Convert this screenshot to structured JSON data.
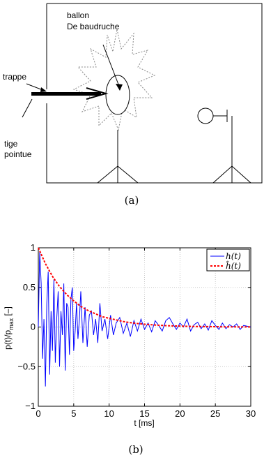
{
  "diagram": {
    "labels": {
      "balloon": [
        "ballon",
        "De baudruche"
      ],
      "trap": "trappe",
      "rod": [
        "tige",
        "pointue"
      ]
    },
    "caption": "(a)"
  },
  "chart": {
    "caption": "(b)",
    "xlabel": "t [ms]",
    "ylabel_main": "p(t)/p",
    "ylabel_sub": "max",
    "ylabel_tail": " [–]",
    "legend": [
      {
        "label": "h(t)",
        "color": "#0000ff",
        "style": "solid"
      },
      {
        "label": "ĥ(t)",
        "color": "#ff0000",
        "style": "dashed"
      }
    ]
  },
  "chart_data": {
    "type": "line",
    "title": "",
    "xlabel": "t [ms]",
    "ylabel": "p(t)/p_max [–]",
    "xlim": [
      0,
      30
    ],
    "ylim": [
      -1,
      1
    ],
    "grid": true,
    "legend_position": "top-right",
    "x_ticks": [
      0,
      5,
      10,
      15,
      20,
      25,
      30
    ],
    "y_ticks": [
      -1,
      -0.5,
      0,
      0.5,
      1
    ],
    "y_tick_labels": [
      "−1",
      "−0.5",
      "0",
      "0.5",
      "1"
    ],
    "series": [
      {
        "name": "h(t)",
        "color": "#0000ff",
        "x": [
          0,
          0.2,
          0.4,
          0.6,
          0.8,
          1.0,
          1.2,
          1.4,
          1.6,
          1.8,
          2.0,
          2.2,
          2.4,
          2.6,
          2.8,
          3.0,
          3.2,
          3.4,
          3.6,
          3.8,
          4.0,
          4.2,
          4.4,
          4.6,
          4.8,
          5.0,
          5.2,
          5.4,
          5.6,
          5.8,
          6.0,
          6.3,
          6.6,
          6.9,
          7.2,
          7.5,
          7.8,
          8.1,
          8.4,
          8.7,
          9.0,
          9.4,
          9.8,
          10.2,
          10.6,
          11.0,
          11.5,
          12.0,
          12.5,
          13.0,
          13.5,
          14.0,
          14.5,
          15.0,
          15.5,
          16.0,
          16.5,
          17.0,
          17.5,
          18.0,
          18.5,
          19.0,
          19.5,
          20.0,
          20.5,
          21.0,
          21.5,
          22.0,
          22.5,
          23.0,
          23.5,
          24.0,
          24.5,
          25.0,
          25.5,
          26.0,
          26.5,
          27.0,
          27.5,
          28.0,
          28.5,
          29.0,
          29.5,
          30.0
        ],
        "y": [
          0,
          0.95,
          0.55,
          -0.4,
          0.1,
          -0.75,
          0.3,
          0.7,
          -0.6,
          0.2,
          -0.3,
          0.6,
          -0.45,
          0.1,
          0.45,
          -0.5,
          0.2,
          -0.1,
          0.55,
          -0.55,
          0.3,
          0.25,
          -0.35,
          0.35,
          0.5,
          -0.3,
          -0.05,
          0.3,
          -0.15,
          0.1,
          0.45,
          -0.2,
          0.25,
          -0.25,
          0.15,
          0.2,
          -0.1,
          0.1,
          -0.2,
          0.3,
          -0.05,
          0.1,
          -0.15,
          0.15,
          -0.1,
          0.05,
          0.12,
          -0.08,
          0.05,
          -0.12,
          0.08,
          -0.05,
          0.1,
          -0.03,
          0.05,
          -0.06,
          0.08,
          0.02,
          -0.05,
          0.08,
          0.12,
          0.04,
          -0.03,
          0.05,
          0.0,
          0.1,
          -0.05,
          0.03,
          0.06,
          -0.02,
          0.04,
          -0.04,
          0.08,
          0.02,
          -0.03,
          0.05,
          -0.02,
          0.03,
          0.0,
          0.04,
          -0.03,
          0.02,
          0.01,
          0.0
        ]
      },
      {
        "name": "ĥ(t)",
        "color": "#ff0000",
        "dashed": true,
        "x": [
          0,
          1,
          2,
          3,
          4,
          5,
          6,
          7,
          8,
          9,
          10,
          11,
          12,
          13,
          14,
          15,
          16,
          17,
          18,
          19,
          20,
          21,
          22,
          23,
          24,
          25,
          26,
          27,
          28,
          29,
          30
        ],
        "y": [
          1.0,
          0.8,
          0.64,
          0.51,
          0.41,
          0.33,
          0.26,
          0.21,
          0.17,
          0.13,
          0.11,
          0.09,
          0.07,
          0.055,
          0.044,
          0.035,
          0.028,
          0.022,
          0.018,
          0.014,
          0.012,
          0.009,
          0.007,
          0.006,
          0.005,
          0.004,
          0.003,
          0.002,
          0.002,
          0.001,
          0.001
        ]
      }
    ]
  }
}
